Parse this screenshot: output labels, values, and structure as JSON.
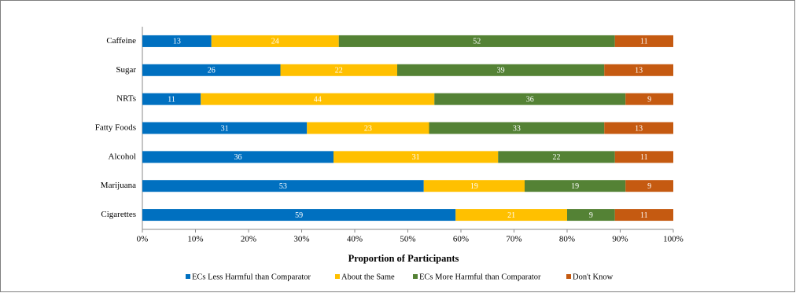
{
  "chart_data": {
    "type": "stacked-bar-horizontal",
    "categories": [
      "Caffeine",
      "Sugar",
      "NRTs",
      "Fatty Foods",
      "Alcohol",
      "Marijuana",
      "Cigarettes"
    ],
    "series": [
      {
        "name": "ECs Less Harmful than Comparator",
        "color": "#0070c0",
        "values": [
          13,
          26,
          11,
          31,
          36,
          53,
          59
        ]
      },
      {
        "name": "About the Same",
        "color": "#ffc000",
        "values": [
          24,
          22,
          44,
          23,
          31,
          19,
          21
        ]
      },
      {
        "name": "ECs More Harmful than Comparator",
        "color": "#548235",
        "values": [
          52,
          39,
          36,
          33,
          22,
          19,
          9
        ]
      },
      {
        "name": "Don't Know",
        "color": "#c55a11",
        "values": [
          11,
          13,
          9,
          13,
          11,
          9,
          11
        ]
      }
    ],
    "x_label": "Proportion of Participants",
    "xlim": [
      0,
      100
    ],
    "xticks": [
      {
        "value": 0,
        "label": "0%"
      },
      {
        "value": 10,
        "label": "10%"
      },
      {
        "value": 20,
        "label": "20%"
      },
      {
        "value": 30,
        "label": "30%"
      },
      {
        "value": 40,
        "label": "40%"
      },
      {
        "value": 50,
        "label": "50%"
      },
      {
        "value": 60,
        "label": "60%"
      },
      {
        "value": 70,
        "label": "70%"
      },
      {
        "value": 80,
        "label": "80%"
      },
      {
        "value": 90,
        "label": "90%"
      },
      {
        "value": 100,
        "label": "100%"
      }
    ],
    "legend": "bottom"
  }
}
